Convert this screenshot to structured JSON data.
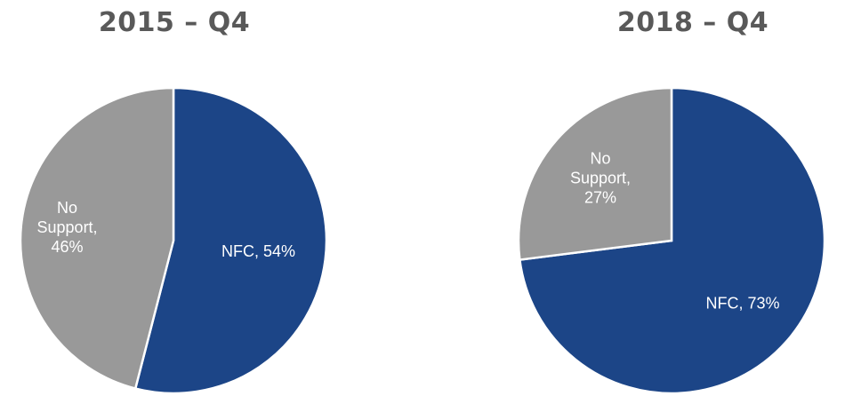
{
  "chart_data": [
    {
      "type": "pie",
      "title": "2015 – Q4",
      "slices": [
        {
          "label": "NFC",
          "value": 54,
          "color": "#1c4587",
          "text_lines": [
            "NFC, 54%"
          ]
        },
        {
          "label": "No Support",
          "value": 46,
          "color": "#999999",
          "text_lines": [
            "No",
            "Support,",
            "46%"
          ]
        }
      ]
    },
    {
      "type": "pie",
      "title": "2018 – Q4",
      "slices": [
        {
          "label": "NFC",
          "value": 73,
          "color": "#1c4587",
          "text_lines": [
            "NFC, 73%"
          ]
        },
        {
          "label": "No Support",
          "value": 27,
          "color": "#999999",
          "text_lines": [
            "No",
            "Support,",
            "27%"
          ]
        }
      ]
    }
  ]
}
